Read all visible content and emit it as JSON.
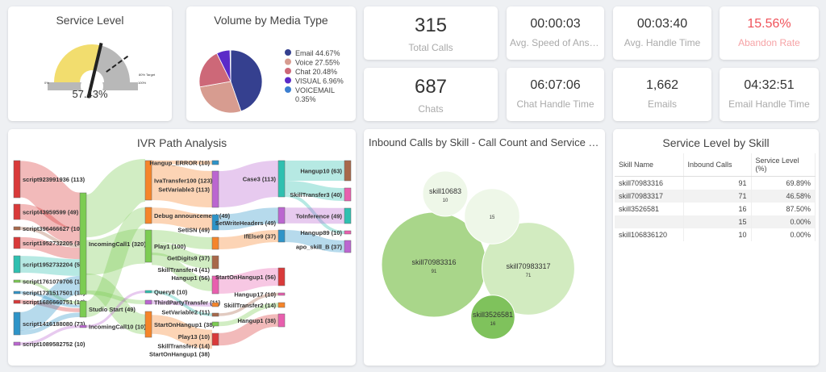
{
  "service_level": {
    "title": "Service Level",
    "value": "57.43%",
    "fraction": 0.5743,
    "target_fraction": 0.8,
    "min_label": "0%",
    "max_label": "100%",
    "target_label": "80% Target",
    "colors": {
      "fill": "#f2dd6e",
      "rest": "#b8b8b8"
    }
  },
  "media": {
    "title": "Volume by Media Type",
    "slices": [
      {
        "label": "Email 44.67%",
        "value": 44.67,
        "color": "#35408f"
      },
      {
        "label": "Voice 27.55%",
        "value": 27.55,
        "color": "#d79c90"
      },
      {
        "label": "Chat 20.48%",
        "value": 20.48,
        "color": "#cd6878"
      },
      {
        "label": "VISUAL 6.96%",
        "value": 6.96,
        "color": "#5b2ac8"
      },
      {
        "label": "VOICEMAIL 0.35%",
        "value": 0.35,
        "color": "#3c7fd0"
      }
    ]
  },
  "kpis": [
    {
      "value": "315",
      "label": "Total Calls"
    },
    {
      "value": "00:00:03",
      "label": "Avg. Speed of Answer"
    },
    {
      "value": "00:03:40",
      "label": "Avg. Handle Time"
    },
    {
      "value": "15.56%",
      "label": "Abandon Rate"
    },
    {
      "value": "687",
      "label": "Chats"
    },
    {
      "value": "06:07:06",
      "label": "Chat Handle Time"
    },
    {
      "value": "1,662",
      "label": "Emails"
    },
    {
      "value": "04:32:51",
      "label": "Email Handle Time"
    }
  ],
  "ivr": {
    "title": "IVR Path Analysis",
    "nodes": [
      {
        "label": "script923991936 (113)",
        "color": "#d93a3a"
      },
      {
        "label": "script43959599 (49)",
        "color": "#d93a3a"
      },
      {
        "label": "script396466627 (10)",
        "color": "#a8684a"
      },
      {
        "label": "script1952732205 (37)",
        "color": "#d93a3a"
      },
      {
        "label": "script1952732204 (52)",
        "color": "#2fc0b0"
      },
      {
        "label": "script1761079706 (11)",
        "color": "#7ccc52"
      },
      {
        "label": "script1731517501 (10)",
        "color": "#2e94c8"
      },
      {
        "label": "script1686660751 (14)",
        "color": "#d93a3a"
      },
      {
        "label": "script1416188080 (73)",
        "color": "#2e94c8"
      },
      {
        "label": "script1089582752 (10)",
        "color": "#bb66d0"
      },
      {
        "label": "IncomingCall1 (320)",
        "color": "#7ccc52"
      },
      {
        "label": "Studio Start (49)",
        "color": "#7ccc52"
      },
      {
        "label": "IncomingCall10 (10)",
        "color": "#bb66d0"
      },
      {
        "label": "IvaTransfer100 (123)",
        "color": "#f5852a"
      },
      {
        "label": "Debug announcement (49)",
        "color": "#f5852a"
      },
      {
        "label": "Play1 (100)",
        "color": "#7ccc52"
      },
      {
        "label": "Query8 (10)",
        "color": "#2fc0b0"
      },
      {
        "label": "ThirdPartyTransfer (11)",
        "color": "#bb66d0"
      },
      {
        "label": "StartOnHangup1 (38)",
        "color": "#f5852a"
      },
      {
        "label": "Hangup_ERROR (10)",
        "color": "#2e94c8"
      },
      {
        "label": "SetVariable3 (113)",
        "color": "#bb66d0"
      },
      {
        "label": "SetISN (49)",
        "color": "#2e94c8"
      },
      {
        "label": "GetDigits9 (37)",
        "color": "#f5852a"
      },
      {
        "label": "SkillTransfer4 (41)",
        "color": "#a8684a"
      },
      {
        "label": "Hangup1 (56)",
        "color": "#e85fae"
      },
      {
        "label": "SetVariable2 (11)",
        "color": "#f5852a"
      },
      {
        "label": "Play13 (10)",
        "color": "#a8684a"
      },
      {
        "label": "SkillTransfer2 (14)",
        "color": "#7ccc52"
      },
      {
        "label": "StartOnHangup1 (38)",
        "color": "#d93a3a"
      },
      {
        "label": "Case3 (113)",
        "color": "#2fc0b0"
      },
      {
        "label": "SetWriteHeaders (49)",
        "color": "#bb66d0"
      },
      {
        "label": "IfElse9 (37)",
        "color": "#2e94c8"
      },
      {
        "label": "StartOnHangup1 (56)",
        "color": "#d93a3a"
      },
      {
        "label": "Hangup17 (10)",
        "color": "#e85fae"
      },
      {
        "label": "SkillTransfer2 (14)",
        "color": "#f5852a"
      },
      {
        "label": "Hangup1 (38)",
        "color": "#e85fae"
      },
      {
        "label": "Hangup10 (63)",
        "color": "#a8684a"
      },
      {
        "label": "SkillTransfer3 (40)",
        "color": "#e85fae"
      },
      {
        "label": "ToInference (49)",
        "color": "#2fc0b0"
      },
      {
        "label": "Hangup89 (10)",
        "color": "#e85fae"
      },
      {
        "label": "apo_skill_B (37)",
        "color": "#bb66d0"
      }
    ],
    "links": [
      [
        0,
        10,
        113
      ],
      [
        1,
        10,
        49
      ],
      [
        2,
        10,
        10
      ],
      [
        3,
        10,
        37
      ],
      [
        4,
        10,
        52
      ],
      [
        5,
        11,
        11
      ],
      [
        6,
        11,
        10
      ],
      [
        7,
        11,
        14
      ],
      [
        8,
        10,
        59
      ],
      [
        8,
        11,
        14
      ],
      [
        9,
        12,
        10
      ],
      [
        10,
        13,
        123
      ],
      [
        10,
        15,
        100
      ],
      [
        10,
        18,
        38
      ],
      [
        10,
        17,
        11
      ],
      [
        11,
        14,
        49
      ],
      [
        12,
        16,
        10
      ],
      [
        13,
        19,
        10
      ],
      [
        13,
        20,
        113
      ],
      [
        14,
        21,
        49
      ],
      [
        15,
        22,
        37
      ],
      [
        15,
        23,
        41
      ],
      [
        15,
        24,
        22
      ],
      [
        17,
        25,
        11
      ],
      [
        16,
        26,
        10
      ],
      [
        18,
        28,
        38
      ],
      [
        20,
        29,
        113
      ],
      [
        21,
        30,
        49
      ],
      [
        22,
        31,
        37
      ],
      [
        24,
        32,
        56
      ],
      [
        26,
        33,
        10
      ],
      [
        27,
        34,
        14
      ],
      [
        28,
        35,
        38
      ],
      [
        29,
        36,
        63
      ],
      [
        29,
        37,
        40
      ],
      [
        29,
        39,
        10
      ],
      [
        30,
        38,
        49
      ],
      [
        31,
        40,
        37
      ]
    ]
  },
  "bubbles": {
    "title": "Inbound Calls by Skill - Call Count and Service Level",
    "items": [
      {
        "name": "skill70983316",
        "value": 91,
        "color": "#a9d68a"
      },
      {
        "name": "skill70983317",
        "value": 71,
        "color": "#d2ebc0"
      },
      {
        "name": "skill3526581",
        "value": 16,
        "color": "#7fc25c"
      },
      {
        "name": "",
        "value": 15,
        "color": "#eef7e8"
      },
      {
        "name": "skill10683",
        "value": 10,
        "color": "#eef7e8"
      }
    ]
  },
  "skill_table": {
    "title": "Service Level by Skill",
    "columns": [
      "Skill Name",
      "Inbound Calls",
      "Service Level (%)"
    ],
    "rows": [
      [
        "skill70983316",
        "91",
        "69.89%"
      ],
      [
        "skill70983317",
        "71",
        "46.58%"
      ],
      [
        "skill3526581",
        "16",
        "87.50%"
      ],
      [
        "",
        "15",
        "0.00%"
      ],
      [
        "skill106836120",
        "10",
        "0.00%"
      ]
    ]
  }
}
